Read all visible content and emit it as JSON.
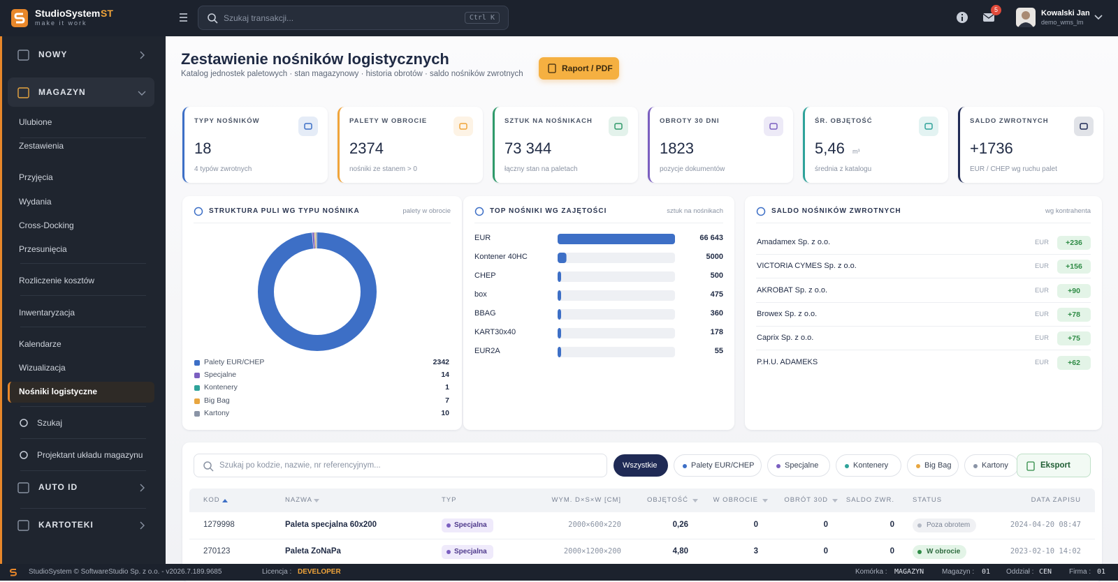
{
  "brand": {
    "name": "StudioSystem",
    "badge": "ST",
    "tagline": "make it work"
  },
  "topbar": {
    "search_placeholder": "Szukaj transakcji...",
    "shortcut": "Ctrl K",
    "notifications": "5",
    "user_name": "Kowalski Jan",
    "user_login": "demo_wms_lm"
  },
  "sidebar": {
    "groups": [
      "NOWY",
      "MAGAZYN",
      "AUTO ID",
      "KARTOTEKI"
    ],
    "links": [
      "Ulubione",
      "Zestawienia",
      "Przyjęcia",
      "Wydania",
      "Cross-Docking",
      "Przesunięcia",
      "Rozliczenie kosztów",
      "Inwentaryzacja",
      "Kalendarze",
      "Wizualizacja",
      "Nośniki logistyczne",
      "Szukaj",
      "Projektant układu magazynu"
    ]
  },
  "header": {
    "title": "Zestawienie nośników logistycznych",
    "subtitle": "Katalog jednostek paletowych · stan magazynowy · historia obrotów · saldo nośników zwrotnych",
    "button": "Raport / PDF"
  },
  "kpis": [
    {
      "label": "TYPY NOŚNIKÓW",
      "value": "18",
      "note": "4 typów zwrotnych",
      "color": "#3d6fc6"
    },
    {
      "label": "PALETY W OBROCIE",
      "value": "2374",
      "note": "nośniki ze stanem > 0",
      "color": "#f0a43a"
    },
    {
      "label": "SZTUK NA NOŚNIKACH",
      "value": "73 344",
      "note": "łączny stan na paletach",
      "color": "#2f9a6a"
    },
    {
      "label": "OBROTY 30 DNI",
      "value": "1823",
      "note": "pozycje dokumentów",
      "color": "#7b5fc0"
    },
    {
      "label": "ŚR. OBJĘTOŚĆ",
      "value": "5,46",
      "unit": "m³",
      "note": "średnia z katalogu",
      "color": "#2fa39a"
    },
    {
      "label": "SALDO ZWROTNYCH",
      "value": "+1736",
      "note": "EUR / CHEP wg ruchu palet",
      "color": "#1f2a55"
    }
  ],
  "donut": {
    "title": "STRUKTURA PULI WG TYPU NOŚNIKA",
    "note": "palety w obrocie",
    "items": [
      {
        "name": "Palety EUR/CHEP",
        "value": 2342,
        "color": "#3d6fc6"
      },
      {
        "name": "Specjalne",
        "value": 14,
        "color": "#7b5fc0"
      },
      {
        "name": "Kontenery",
        "value": 1,
        "color": "#2fa39a"
      },
      {
        "name": "Big Bag",
        "value": 7,
        "color": "#e8a640"
      },
      {
        "name": "Kartony",
        "value": 10,
        "color": "#8a94a6"
      }
    ]
  },
  "bars": {
    "title": "TOP NOŚNIKI WG ZAJĘTOŚCI",
    "note": "sztuk na nośnikach",
    "color": "#3d6fc6",
    "categories": [
      "EUR",
      "Kontener 40HC",
      "CHEP",
      "box",
      "BBAG",
      "KART30x40",
      "EUR2A"
    ],
    "values": [
      66643,
      5000,
      500,
      475,
      360,
      178,
      55
    ],
    "value_labels": [
      "66 643",
      "5000",
      "500",
      "475",
      "360",
      "178",
      "55"
    ]
  },
  "saldo": {
    "title": "SALDO NOŚNIKÓW ZWROTNYCH",
    "note": "wg kontrahenta",
    "rows": [
      {
        "name": "Amadamex Sp. z o.o.",
        "unit": "EUR",
        "value": "+236"
      },
      {
        "name": "VICTORIA CYMES Sp. z o.o.",
        "unit": "EUR",
        "value": "+156"
      },
      {
        "name": "AKROBAT Sp. z o.o.",
        "unit": "EUR",
        "value": "+90"
      },
      {
        "name": "Browex Sp. z o.o.",
        "unit": "EUR",
        "value": "+78"
      },
      {
        "name": "Caprix Sp. z o.o.",
        "unit": "EUR",
        "value": "+75"
      },
      {
        "name": "P.H.U. ADAMEKS",
        "unit": "EUR",
        "value": "+62"
      }
    ]
  },
  "table": {
    "search_placeholder": "Szukaj po kodzie, nazwie, nr referencyjnym...",
    "filters": [
      "Wszystkie",
      "Palety EUR/CHEP",
      "Specjalne",
      "Kontenery",
      "Big Bag",
      "Kartony"
    ],
    "export": "Eksport",
    "columns": [
      "KOD",
      "NAZWA",
      "TYP",
      "WYM. D×S×W [CM]",
      "OBJĘTOŚĆ",
      "W OBROCIE",
      "OBRÓT 30D",
      "SALDO ZWR.",
      "STATUS",
      "DATA ZAPISU"
    ],
    "rows": [
      [
        "1279998",
        "Paleta specjalna 60x200",
        "Specjalna",
        "2000×600×220",
        "0,26",
        "0",
        "0",
        "0",
        "Poza obrotem",
        "2024-04-20 08:47"
      ],
      [
        "270123",
        "Paleta ZoNaPa",
        "Specjalna",
        "2000×1200×200",
        "4,80",
        "3",
        "0",
        "0",
        "W obrocie",
        "2023-02-10 14:02"
      ]
    ]
  },
  "footer": {
    "copyright": "StudioSystem © SoftwareStudio Sp. z o.o. - v2026.7.189.9685",
    "items": [
      {
        "label": "Licencja :",
        "value": "DEVELOPER"
      },
      {
        "label": "Komórka :",
        "value": "MAGAZYN"
      },
      {
        "label": "Magazyn :",
        "value": "01"
      },
      {
        "label": "Oddział :",
        "value": "CEN"
      },
      {
        "label": "Firma :",
        "value": "01"
      }
    ]
  }
}
